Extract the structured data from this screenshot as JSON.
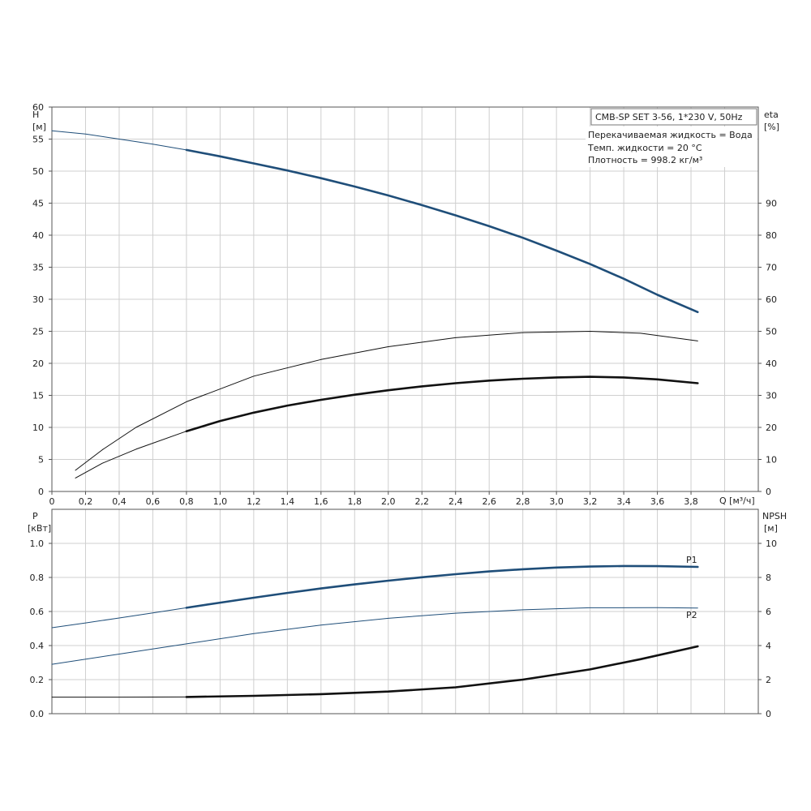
{
  "colors": {
    "blue": "#1f4e79",
    "black": "#111111",
    "grid": "#cfcfcf"
  },
  "chart_data": [
    {
      "type": "line",
      "name": "top-chart",
      "info": {
        "model": "CMB-SP SET 3-56, 1*230 V, 50Hz",
        "lines": [
          "Перекачиваемая жидкость = Вода",
          "Темп. жидкости = 20 °C",
          "Плотность = 998.2 кг/м³"
        ]
      },
      "y_left": {
        "title": "H",
        "unit": "[м]",
        "min": 0,
        "max": 60,
        "ticks": [
          0,
          5,
          10,
          15,
          20,
          25,
          30,
          35,
          40,
          45,
          50,
          55,
          60
        ]
      },
      "y_right": {
        "title": "eta",
        "unit": "[%]",
        "min": 0,
        "max": 120,
        "ticks": [
          0,
          10,
          20,
          30,
          40,
          50,
          60,
          70,
          80,
          90
        ]
      },
      "x": {
        "title": "Q [м³/ч]",
        "min": 0,
        "max": 4.2,
        "ticks": [
          0,
          0.2,
          0.4,
          0.6,
          0.8,
          1.0,
          1.2,
          1.4,
          1.6,
          1.8,
          2.0,
          2.2,
          2.4,
          2.6,
          2.8,
          3.0,
          3.2,
          3.4,
          3.6,
          3.8
        ],
        "tick_labels": [
          "0",
          "0,2",
          "0,4",
          "0,6",
          "0,8",
          "1,0",
          "1,2",
          "1,4",
          "1,6",
          "1,8",
          "2,0",
          "2,2",
          "2,4",
          "2,6",
          "2,8",
          "3,0",
          "3,2",
          "3,4",
          "3,6",
          "3,8"
        ]
      },
      "series": [
        {
          "key": "head",
          "axis": "left",
          "color": "blue",
          "thin": {
            "x": [
              0,
              0.2,
              0.4,
              0.6,
              0.8
            ],
            "y": [
              56.3,
              55.8,
              55.0,
              54.2,
              53.3
            ]
          },
          "thick": {
            "x": [
              0.8,
              1.0,
              1.2,
              1.4,
              1.6,
              1.8,
              2.0,
              2.2,
              2.4,
              2.6,
              2.8,
              3.0,
              3.2,
              3.4,
              3.6,
              3.84
            ],
            "y": [
              53.3,
              52.3,
              51.2,
              50.1,
              48.9,
              47.6,
              46.2,
              44.7,
              43.1,
              41.4,
              39.6,
              37.6,
              35.5,
              33.2,
              30.7,
              28.0
            ]
          }
        },
        {
          "key": "eta-thin-curve",
          "axis": "left",
          "color": "black",
          "thin": {
            "x": [
              0.14,
              0.3,
              0.5,
              0.8,
              1.2,
              1.6,
              2.0,
              2.4,
              2.8,
              3.2,
              3.5,
              3.84
            ],
            "y": [
              3.3,
              6.5,
              10.0,
              14.0,
              18.0,
              20.6,
              22.6,
              24.0,
              24.8,
              25.0,
              24.7,
              23.5
            ]
          }
        },
        {
          "key": "eta",
          "axis": "left",
          "color": "black",
          "thin": {
            "x": [
              0.14,
              0.3,
              0.5,
              0.8
            ],
            "y": [
              2.1,
              4.4,
              6.6,
              9.4
            ]
          },
          "thick": {
            "x": [
              0.8,
              1.0,
              1.2,
              1.4,
              1.6,
              1.8,
              2.0,
              2.2,
              2.4,
              2.6,
              2.8,
              3.0,
              3.2,
              3.4,
              3.6,
              3.84
            ],
            "y": [
              9.4,
              11.0,
              12.3,
              13.4,
              14.3,
              15.1,
              15.8,
              16.4,
              16.9,
              17.3,
              17.6,
              17.8,
              17.9,
              17.8,
              17.5,
              16.9
            ]
          }
        }
      ]
    },
    {
      "type": "line",
      "name": "bottom-chart",
      "y_left": {
        "title": "P",
        "unit": "[кВт]",
        "min": 0,
        "max": 1.2,
        "ticks": [
          0,
          0.2,
          0.4,
          0.6,
          0.8,
          1.0
        ],
        "tick_labels": [
          "0.0",
          "0.2",
          "0.4",
          "0.6",
          "0.8",
          "1.0"
        ]
      },
      "y_right": {
        "title": "NPSH",
        "unit": "[м]",
        "min": 0,
        "max": 12,
        "ticks": [
          0,
          2,
          4,
          6,
          8,
          10
        ]
      },
      "series": [
        {
          "key": "P1",
          "name": "P1",
          "axis": "left",
          "color": "blue",
          "thin": {
            "x": [
              0,
              0.2,
              0.4,
              0.6,
              0.8
            ],
            "y": [
              0.505,
              0.533,
              0.562,
              0.592,
              0.622
            ]
          },
          "thick": {
            "x": [
              0.8,
              1.0,
              1.2,
              1.4,
              1.6,
              1.8,
              2.0,
              2.2,
              2.4,
              2.6,
              2.8,
              3.0,
              3.2,
              3.4,
              3.6,
              3.84
            ],
            "y": [
              0.622,
              0.652,
              0.681,
              0.709,
              0.735,
              0.759,
              0.781,
              0.801,
              0.819,
              0.835,
              0.848,
              0.858,
              0.864,
              0.867,
              0.866,
              0.862
            ]
          }
        },
        {
          "key": "P2",
          "name": "P2",
          "axis": "left",
          "color": "blue",
          "thin": {
            "x": [
              0,
              0.4,
              0.8,
              1.2,
              1.6,
              2.0,
              2.4,
              2.8,
              3.2,
              3.6,
              3.84
            ],
            "y": [
              0.29,
              0.35,
              0.41,
              0.47,
              0.52,
              0.56,
              0.59,
              0.61,
              0.622,
              0.623,
              0.62
            ]
          }
        },
        {
          "key": "NPSH",
          "axis": "right",
          "color": "black",
          "thin": {
            "x": [
              0,
              0.4,
              0.8
            ],
            "y": [
              0.97,
              0.97,
              0.98
            ]
          },
          "thick": {
            "x": [
              0.8,
              1.2,
              1.6,
              2.0,
              2.4,
              2.8,
              3.2,
              3.5,
              3.84
            ],
            "y": [
              0.98,
              1.05,
              1.15,
              1.3,
              1.55,
              2.0,
              2.6,
              3.2,
              3.95
            ]
          }
        }
      ]
    }
  ]
}
